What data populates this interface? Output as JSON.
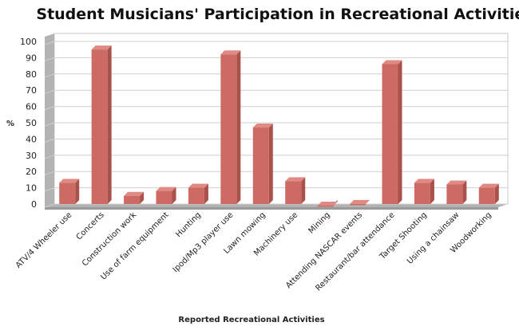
{
  "chart_data": {
    "type": "bar",
    "title": "Student Musicians' Participation in Recreational Activities",
    "xlabel": "Reported Recreational Activities",
    "ylabel": "%",
    "ylim": [
      0,
      100
    ],
    "yticks": [
      0,
      10,
      20,
      30,
      40,
      50,
      60,
      70,
      80,
      90,
      100
    ],
    "grid": true,
    "legend": "none",
    "bar_color": "#cd6a63",
    "categories": [
      "ATV/4 Wheeler use",
      "Concerts",
      "Construction work",
      "Use of farm equipment",
      "Hunting",
      "Ipod/Mp3 player use",
      "Lawn mowing",
      "Machinery use",
      "Mining",
      "Attending NASCAR events",
      "Restaurant/bar attendance",
      "Target Shooting",
      "Using a chainsaw",
      "Woodworking"
    ],
    "series": [
      {
        "values": [
          15,
          97,
          7,
          10,
          12,
          94,
          49,
          16,
          1,
          2,
          88,
          15,
          14,
          12
        ]
      }
    ]
  }
}
